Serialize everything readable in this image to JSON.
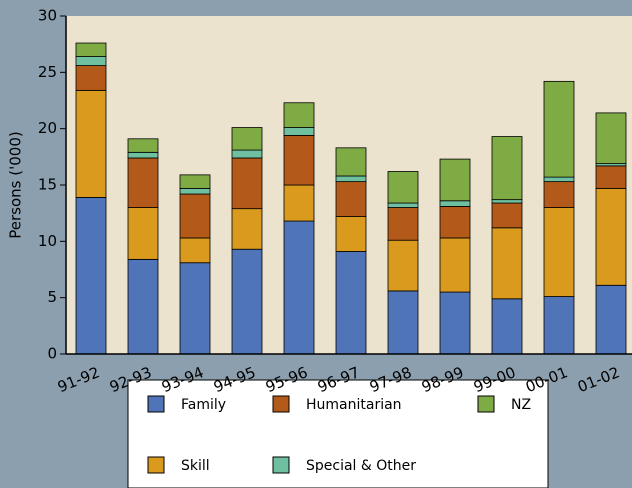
{
  "chart_data": {
    "type": "stacked_bar",
    "y_label": "Persons ('000)",
    "categories": [
      "91-92",
      "92-93",
      "93-94",
      "94-95",
      "95-96",
      "96-97",
      "97-98",
      "98-99",
      "99-00",
      "00-01",
      "01-02"
    ],
    "series": [
      {
        "name": "Family",
        "color": "#4f75b8",
        "values": [
          13.9,
          8.4,
          8.1,
          9.3,
          11.8,
          9.1,
          5.6,
          5.5,
          4.9,
          5.1,
          6.1
        ]
      },
      {
        "name": "Skill",
        "color": "#d99a1e",
        "values": [
          9.5,
          4.6,
          2.2,
          3.6,
          3.2,
          3.1,
          4.5,
          4.8,
          6.3,
          7.9,
          8.6
        ]
      },
      {
        "name": "Humanitarian",
        "color": "#b35a1a",
        "values": [
          2.2,
          4.4,
          3.9,
          4.5,
          4.4,
          3.1,
          2.9,
          2.8,
          2.2,
          2.3,
          2.0
        ]
      },
      {
        "name": "Special & Other",
        "color": "#6fc0a0",
        "values": [
          0.8,
          0.5,
          0.5,
          0.7,
          0.7,
          0.5,
          0.4,
          0.5,
          0.3,
          0.4,
          0.2
        ]
      },
      {
        "name": "NZ",
        "color": "#7fab45",
        "values": [
          1.2,
          1.2,
          1.2,
          2.0,
          2.2,
          2.5,
          2.8,
          3.7,
          5.6,
          8.5,
          4.5
        ]
      }
    ],
    "ylim": [
      0,
      30
    ],
    "yticks": [
      0,
      5,
      10,
      15,
      20,
      25,
      30
    ]
  }
}
